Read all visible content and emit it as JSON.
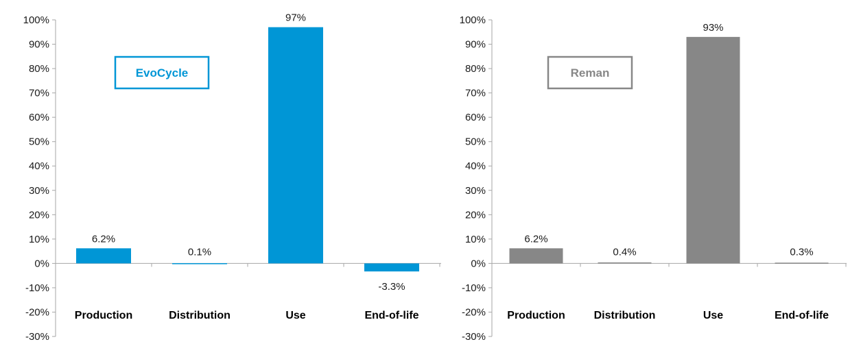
{
  "chart_data": [
    {
      "type": "bar",
      "title": "EvoCycle",
      "categories": [
        "Production",
        "Distribution",
        "Use",
        "End-of-life"
      ],
      "values": [
        6.2,
        0.1,
        97,
        -3.3
      ],
      "data_labels": [
        "6.2%",
        "0.1%",
        "97%",
        "-3.3%"
      ],
      "ylim": [
        -30,
        100
      ],
      "yticks": [
        -30,
        -20,
        -10,
        0,
        10,
        20,
        30,
        40,
        50,
        60,
        70,
        80,
        90,
        100
      ],
      "ytick_labels": [
        "-30%",
        "-20%",
        "-10%",
        "0%",
        "10%",
        "20%",
        "30%",
        "40%",
        "50%",
        "60%",
        "70%",
        "80%",
        "90%",
        "100%"
      ],
      "xlabel": "",
      "ylabel": "",
      "color": "#0096d6",
      "grid": false,
      "legend": "none"
    },
    {
      "type": "bar",
      "title": "Reman",
      "categories": [
        "Production",
        "Distribution",
        "Use",
        "End-of-life"
      ],
      "values": [
        6.2,
        0.4,
        93,
        0.3
      ],
      "data_labels": [
        "6.2%",
        "0.4%",
        "93%",
        "0.3%"
      ],
      "ylim": [
        -30,
        100
      ],
      "yticks": [
        -30,
        -20,
        -10,
        0,
        10,
        20,
        30,
        40,
        50,
        60,
        70,
        80,
        90,
        100
      ],
      "ytick_labels": [
        "-30%",
        "-20%",
        "-10%",
        "0%",
        "10%",
        "20%",
        "30%",
        "40%",
        "50%",
        "60%",
        "70%",
        "80%",
        "90%",
        "100%"
      ],
      "xlabel": "",
      "ylabel": "",
      "color": "#878787",
      "grid": false,
      "legend": "none"
    }
  ]
}
